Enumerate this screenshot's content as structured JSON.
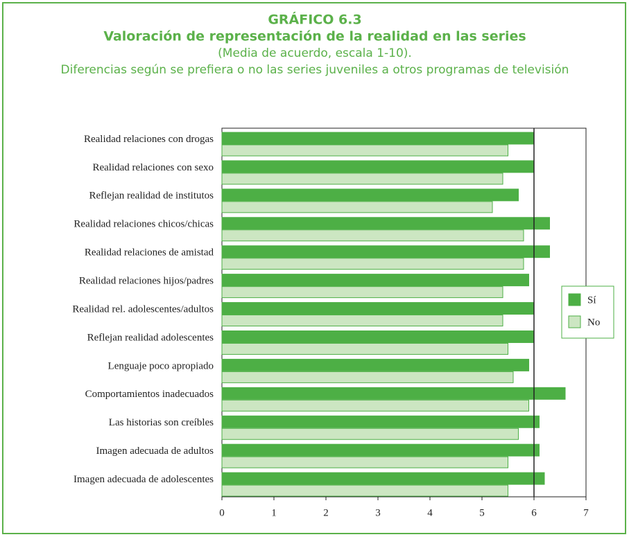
{
  "chart_data": {
    "type": "barh",
    "title": "GRÁFICO 6.3",
    "subtitle": "Valoración de representación de la realidad en las series",
    "note": "(Media de acuerdo, escala 1-10).",
    "description": "Diferencias según se prefiera o no las series juveniles a otros programas de televisión",
    "categories": [
      "Realidad relaciones con drogas",
      "Realidad relaciones con sexo",
      "Reflejan realidad de institutos",
      "Realidad relaciones chicos/chicas",
      "Realidad relaciones de amistad",
      "Realidad relaciones hijos/padres",
      "Realidad rel. adolescentes/adultos",
      "Reflejan realidad adolescentes",
      "Lenguaje poco apropiado",
      "Comportamientos inadecuados",
      "Las historias son creíbles",
      "Imagen adecuada de adultos",
      "Imagen adecuada de adolescentes"
    ],
    "series": [
      {
        "name": "Sí",
        "color": "#4daf45",
        "values": [
          6.0,
          6.0,
          5.7,
          6.3,
          6.3,
          5.9,
          6.0,
          6.0,
          5.9,
          6.6,
          6.1,
          6.1,
          6.2
        ]
      },
      {
        "name": "No",
        "color": "#cce6c2",
        "values": [
          5.5,
          5.4,
          5.2,
          5.8,
          5.8,
          5.4,
          5.4,
          5.5,
          5.6,
          5.9,
          5.7,
          5.5,
          5.5
        ]
      }
    ],
    "xlim": [
      0,
      7
    ],
    "xticks": [
      0,
      1,
      2,
      3,
      4,
      5,
      6,
      7
    ],
    "reference_line": 6,
    "legend": "right"
  }
}
